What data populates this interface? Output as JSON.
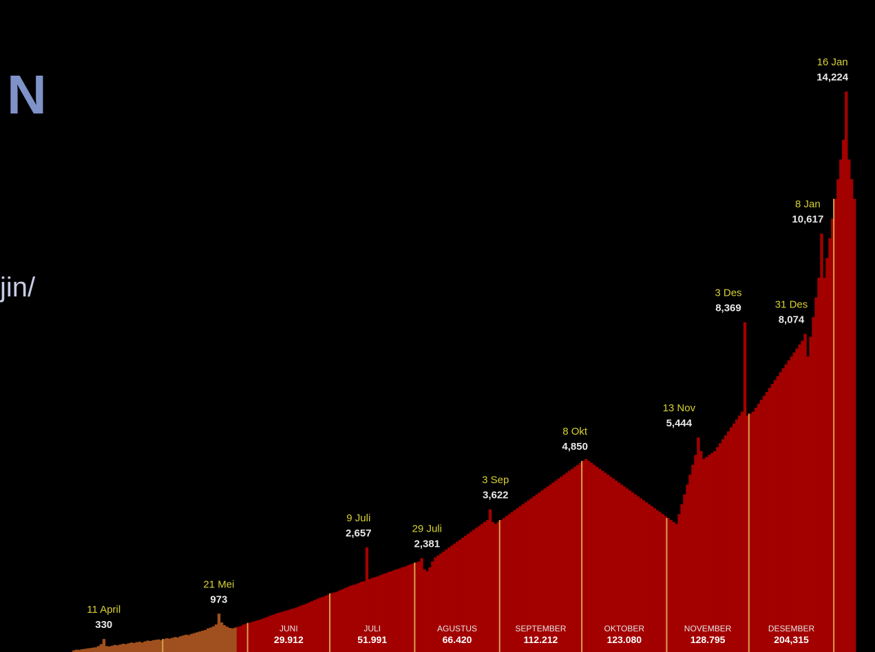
{
  "slide": {
    "heading_fragment": "N",
    "body_fragment": "jin/"
  },
  "colors": {
    "background": "#000000",
    "early_bars": "#a0501e",
    "bars": "#a30000",
    "month_divider": "#d8a34a",
    "annotation_date": "#d8d234",
    "annotation_value": "#e8e8e8"
  },
  "chart_data": {
    "type": "bar",
    "title": "",
    "xlabel": "",
    "ylabel": "",
    "x_range": [
      "2020-03-28",
      "2021-01-18"
    ],
    "ylim": [
      0,
      15500
    ],
    "grid": false,
    "series": [
      {
        "values": [
          40,
          60,
          55,
          70,
          80,
          90,
          100,
          110,
          120,
          150,
          200,
          330,
          150,
          140,
          160,
          180,
          170,
          190,
          210,
          200,
          220,
          240,
          230,
          250,
          260,
          240,
          270,
          290,
          280,
          300,
          310,
          320,
          300,
          330,
          350,
          340,
          360,
          380,
          370,
          400,
          420,
          440,
          430,
          460,
          480,
          500,
          520,
          540,
          560,
          600,
          620,
          650,
          700,
          973,
          750,
          680,
          640,
          610,
          600,
          620,
          640,
          660,
          700,
          720,
          740,
          760,
          780,
          800,
          820,
          850,
          870,
          900,
          930,
          950,
          980,
          1000,
          1020,
          1040,
          1060,
          1080,
          1100,
          1120,
          1150,
          1180,
          1200,
          1230,
          1260,
          1290,
          1320,
          1350,
          1380,
          1400,
          1430,
          1460,
          1490,
          1510,
          1530,
          1560,
          1590,
          1620,
          1650,
          1680,
          1700,
          1720,
          1750,
          1780,
          1800,
          2657,
          1850,
          1880,
          1900,
          1920,
          1950,
          1980,
          2000,
          2030,
          2050,
          2080,
          2100,
          2120,
          2150,
          2170,
          2200,
          2230,
          2250,
          2270,
          2300,
          2381,
          2100,
          2050,
          2150,
          2300,
          2400,
          2450,
          2500,
          2550,
          2600,
          2650,
          2700,
          2750,
          2800,
          2850,
          2900,
          2950,
          3000,
          3050,
          3100,
          3150,
          3200,
          3250,
          3300,
          3350,
          3622,
          3300,
          3250,
          3300,
          3350,
          3400,
          3450,
          3500,
          3550,
          3600,
          3650,
          3700,
          3750,
          3800,
          3850,
          3900,
          3950,
          4000,
          4050,
          4100,
          4150,
          4200,
          4250,
          4300,
          4350,
          4400,
          4450,
          4500,
          4550,
          4600,
          4650,
          4700,
          4750,
          4800,
          4850,
          4900,
          4850,
          4800,
          4750,
          4700,
          4650,
          4600,
          4550,
          4500,
          4450,
          4400,
          4350,
          4300,
          4250,
          4200,
          4150,
          4100,
          4050,
          4000,
          3950,
          3900,
          3850,
          3800,
          3750,
          3700,
          3650,
          3600,
          3550,
          3500,
          3450,
          3400,
          3350,
          3300,
          3250,
          3500,
          3750,
          4000,
          4250,
          4500,
          4750,
          5000,
          5444,
          5100,
          4900,
          4950,
          5000,
          5050,
          5100,
          5200,
          5300,
          5400,
          5500,
          5600,
          5700,
          5800,
          5900,
          6000,
          6100,
          8369,
          6000,
          6050,
          6100,
          6200,
          6300,
          6400,
          6500,
          6600,
          6700,
          6800,
          6900,
          7000,
          7100,
          7200,
          7300,
          7400,
          7500,
          7600,
          7700,
          7800,
          7900,
          8074,
          7500,
          8000,
          8500,
          9000,
          9500,
          10617,
          9500,
          10000,
          10500,
          11000,
          11500,
          12000,
          12500,
          13000,
          14224,
          12500,
          12000,
          11500
        ]
      }
    ],
    "annotations": [
      {
        "date": "11 April",
        "value": "330"
      },
      {
        "date": "21 Mei",
        "value": "973"
      },
      {
        "date": "9 Juli",
        "value": "2,657"
      },
      {
        "date": "29 Juli",
        "value": "2,381"
      },
      {
        "date": "3 Sep",
        "value": "3,622"
      },
      {
        "date": "8 Okt",
        "value": "4,850"
      },
      {
        "date": "13 Nov",
        "value": "5,444"
      },
      {
        "date": "3 Des",
        "value": "8,369"
      },
      {
        "date": "31 Des",
        "value": "8,074"
      },
      {
        "date": "8 Jan",
        "value": "10,617"
      },
      {
        "date": "16 Jan",
        "value": "14,224"
      }
    ],
    "month_totals": [
      {
        "month": "JUNI",
        "total": "29.912"
      },
      {
        "month": "JULI",
        "total": "51.991"
      },
      {
        "month": "AGUSTUS",
        "total": "66.420"
      },
      {
        "month": "SEPTEMBER",
        "total": "112.212"
      },
      {
        "month": "OKTOBER",
        "total": "123.080"
      },
      {
        "month": "NOVEMBER",
        "total": "128.795"
      },
      {
        "month": "DESEMBER",
        "total": "204,315"
      }
    ]
  }
}
